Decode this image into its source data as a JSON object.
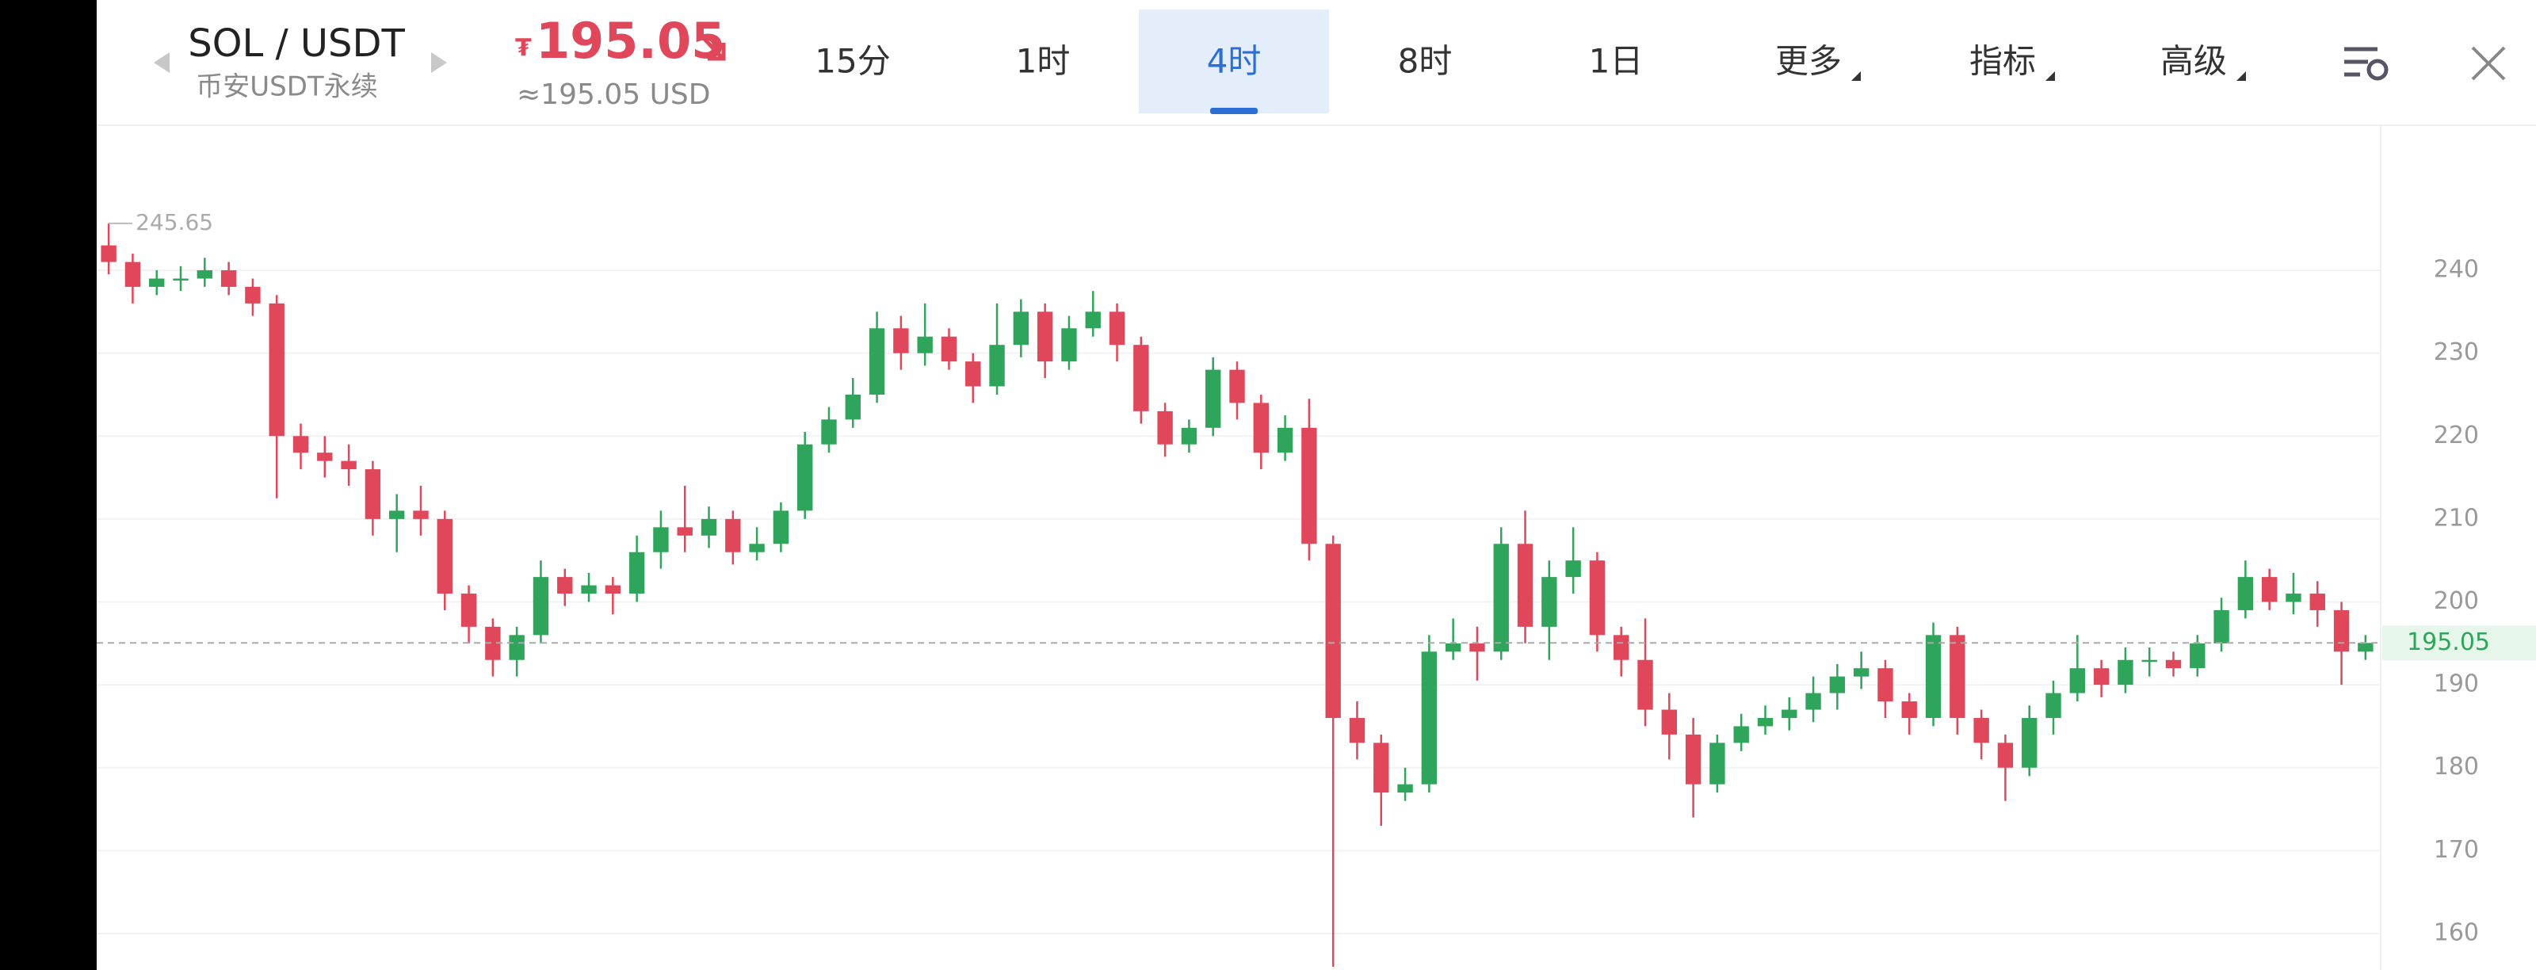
{
  "header": {
    "pair": "SOL / USDT",
    "exchange": "币安USDT永续",
    "currency_symbol": "₮",
    "price": "195.05",
    "usd_price": "≈195.05 USD",
    "tabs": [
      {
        "label": "15分",
        "dropdown": false
      },
      {
        "label": "1时",
        "dropdown": false
      },
      {
        "label": "4时",
        "dropdown": false
      },
      {
        "label": "8时",
        "dropdown": false
      },
      {
        "label": "1日",
        "dropdown": false
      },
      {
        "label": "更多",
        "dropdown": true
      },
      {
        "label": "指标",
        "dropdown": true
      },
      {
        "label": "高级",
        "dropdown": true
      }
    ],
    "selected_tab": 2
  },
  "chart_data": {
    "type": "candlestick",
    "open": [
      243,
      241,
      238,
      239,
      239,
      240,
      238,
      236,
      220,
      218,
      217,
      216,
      210,
      211,
      210,
      201,
      197,
      193,
      196,
      203,
      201,
      202,
      201,
      206,
      209,
      208,
      210,
      206,
      207,
      211,
      219,
      222,
      225,
      233,
      230,
      232,
      229,
      226,
      231,
      235,
      229,
      233,
      235,
      231,
      223,
      219,
      221,
      228,
      224,
      218,
      221,
      207,
      186,
      183,
      177,
      178,
      194,
      195,
      194,
      207,
      197,
      203,
      205,
      196,
      193,
      187,
      184,
      178,
      183,
      185,
      186,
      187,
      189,
      191,
      192,
      188,
      186,
      196,
      186,
      183,
      180,
      186,
      189,
      192,
      190,
      193,
      193,
      192,
      195,
      199,
      203,
      200,
      201,
      199,
      194
    ],
    "high": [
      245.65,
      242,
      240,
      240.5,
      241.5,
      241,
      239,
      237,
      221.5,
      220,
      219,
      217,
      213,
      214,
      211,
      202,
      198,
      197,
      205,
      204,
      203.5,
      203,
      208,
      211,
      214,
      211.5,
      211,
      209,
      212,
      220.5,
      223.5,
      227,
      235,
      234.5,
      236,
      233,
      230,
      236,
      236.5,
      236,
      234.5,
      237.5,
      236,
      232,
      224,
      222,
      229.5,
      229,
      225,
      222.5,
      224.5,
      208,
      188,
      184,
      180,
      196,
      198,
      197,
      209,
      211,
      205,
      209,
      206,
      197,
      198,
      189,
      186,
      184,
      186.5,
      187.5,
      188.5,
      191,
      192.5,
      194,
      193,
      189,
      197.5,
      197,
      187,
      184,
      187.5,
      190.5,
      196,
      193,
      194.5,
      194.5,
      194,
      196,
      200.5,
      205,
      204,
      203.5,
      202.5,
      200,
      196
    ],
    "low": [
      239.5,
      236,
      237,
      237.5,
      238,
      237,
      234.5,
      212.5,
      216,
      215,
      214,
      208,
      206,
      208,
      199,
      195,
      191,
      191,
      195,
      199.5,
      200,
      198.5,
      200,
      204,
      206,
      206.5,
      204.5,
      205,
      206,
      210,
      218,
      221,
      224,
      228,
      228.5,
      228,
      224,
      225,
      229.5,
      227,
      228,
      232,
      229,
      221.5,
      217.5,
      218,
      220,
      222,
      216,
      217,
      205,
      156,
      181,
      173,
      176,
      177,
      193,
      190.5,
      193,
      195,
      193,
      201,
      194,
      191,
      185,
      181,
      174,
      177,
      182,
      184,
      184.5,
      185.5,
      187,
      189.5,
      186,
      184,
      185,
      184,
      181,
      176,
      179,
      184,
      188,
      188.5,
      189,
      191,
      191,
      191,
      194,
      198,
      199,
      198.5,
      197,
      190,
      193
    ],
    "close": [
      241,
      238,
      239,
      239,
      240,
      238,
      236,
      220,
      218,
      217,
      216,
      210,
      211,
      210,
      201,
      197,
      193,
      196,
      203,
      201,
      202,
      201,
      206,
      209,
      208,
      210,
      206,
      207,
      211,
      219,
      222,
      225,
      233,
      230,
      232,
      229,
      226,
      231,
      235,
      229,
      233,
      235,
      231,
      223,
      219,
      221,
      228,
      224,
      218,
      221,
      207,
      186,
      183,
      177,
      178,
      194,
      195,
      194,
      207,
      197,
      203,
      205,
      196,
      193,
      187,
      184,
      178,
      183,
      185,
      186,
      187,
      189,
      191,
      192,
      188,
      186,
      196,
      186,
      183,
      180,
      186,
      189,
      192,
      190,
      193,
      193,
      192,
      195,
      199,
      203,
      200,
      201,
      199,
      194,
      195.05
    ],
    "up_color": "#2fa55b",
    "down_color": "#e0475a",
    "ylim": [
      155.6,
      257.4
    ],
    "yticks": [
      160,
      170,
      180,
      190,
      200,
      210,
      220,
      230,
      240
    ],
    "grid": true,
    "last_price": 195.05,
    "last_price_color": "#2fa55b",
    "max_label": 245.65
  }
}
